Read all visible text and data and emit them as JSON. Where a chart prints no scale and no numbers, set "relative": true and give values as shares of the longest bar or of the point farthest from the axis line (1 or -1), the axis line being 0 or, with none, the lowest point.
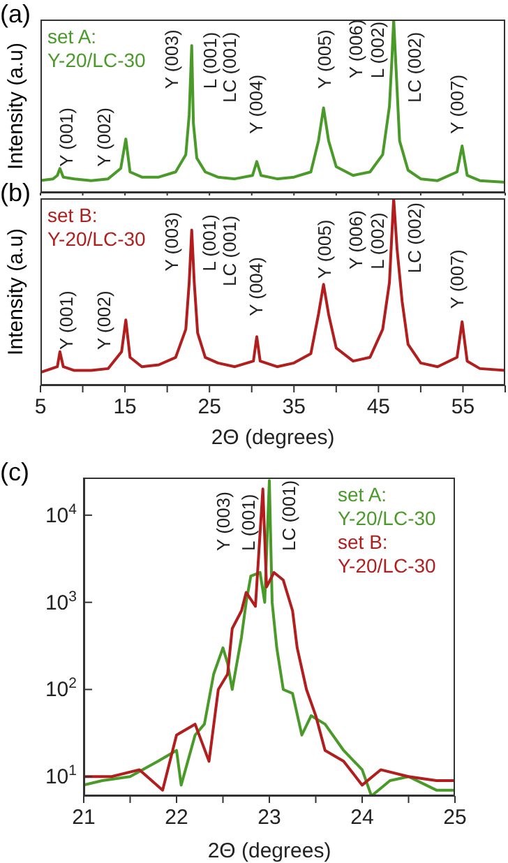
{
  "chart_data": [
    {
      "type": "line",
      "title": "(a)",
      "ylabel": "Intensity (a.u)",
      "relative": true,
      "xlim": [
        5,
        60
      ],
      "xticks": [
        5,
        {
          "value": 10,
          "label": null
        },
        15,
        {
          "value": 20,
          "label": null
        },
        25,
        {
          "value": 30,
          "label": null
        },
        35,
        {
          "value": 40,
          "label": null
        },
        45,
        {
          "value": 50,
          "label": null
        },
        55,
        {
          "value": 60,
          "label": null
        }
      ],
      "tick_labels": false,
      "legend": "top left",
      "series": [
        {
          "name": "set A: Y-20/LC-30",
          "color": "#4a9a2a",
          "x": [
            5,
            6.5,
            7.0,
            7.3,
            7.7,
            9,
            11,
            13,
            14.5,
            15.1,
            15.6,
            17,
            19,
            21,
            22.2,
            22.6,
            22.9,
            23.1,
            23.5,
            24.5,
            26,
            28,
            30.1,
            30.6,
            31.1,
            33,
            35,
            37,
            37.9,
            38.5,
            39.1,
            40,
            42,
            44,
            45.5,
            46.3,
            46.6,
            46.8,
            47.1,
            47.5,
            48.5,
            50,
            52,
            54.3,
            54.9,
            55.5,
            57,
            60
          ],
          "values": [
            0.07,
            0.08,
            0.1,
            0.14,
            0.09,
            0.08,
            0.07,
            0.08,
            0.14,
            0.31,
            0.12,
            0.09,
            0.09,
            0.12,
            0.22,
            0.45,
            0.85,
            0.4,
            0.2,
            0.12,
            0.09,
            0.08,
            0.1,
            0.18,
            0.1,
            0.08,
            0.09,
            0.12,
            0.3,
            0.49,
            0.3,
            0.15,
            0.1,
            0.12,
            0.22,
            0.5,
            0.78,
            1.0,
            0.7,
            0.3,
            0.13,
            0.08,
            0.07,
            0.12,
            0.27,
            0.1,
            0.07,
            0.06
          ]
        }
      ],
      "annotations": [
        "Y (001)",
        "Y (002)",
        "Y (003)",
        "L (001)",
        "LC (001)",
        "Y (004)",
        "Y (005)",
        "Y (006)",
        "L (002)",
        "LC (002)",
        "Y (007)"
      ]
    },
    {
      "type": "line",
      "title": "(b)",
      "xlabel": "2Θ (degrees)",
      "ylabel": "Intensity (a.u)",
      "relative": true,
      "xlim": [
        5,
        60
      ],
      "xticks": [
        5,
        {
          "value": 10,
          "label": null
        },
        15,
        {
          "value": 20,
          "label": null
        },
        25,
        {
          "value": 30,
          "label": null
        },
        35,
        {
          "value": 40,
          "label": null
        },
        45,
        {
          "value": 50,
          "label": null
        },
        55,
        {
          "value": 60,
          "label": null
        }
      ],
      "tick_labels": "x",
      "legend": "top left",
      "series": [
        {
          "name": "set B: Y-20/LC-30",
          "color": "#b21e1e",
          "x": [
            5,
            7.0,
            7.3,
            7.7,
            9,
            11,
            13,
            14.6,
            15.1,
            15.6,
            17,
            19,
            21,
            22.2,
            22.6,
            22.9,
            23.2,
            23.6,
            24.5,
            26,
            28,
            30.2,
            30.6,
            31.0,
            33,
            35,
            37,
            37.9,
            38.5,
            39.1,
            40,
            42,
            44,
            45.5,
            46.3,
            46.8,
            47.2,
            47.8,
            48.5,
            50,
            52,
            54.3,
            54.9,
            55.5,
            57,
            60
          ],
          "values": [
            0.07,
            0.1,
            0.18,
            0.1,
            0.08,
            0.08,
            0.09,
            0.18,
            0.35,
            0.15,
            0.1,
            0.11,
            0.15,
            0.3,
            0.55,
            0.83,
            0.55,
            0.28,
            0.15,
            0.12,
            0.1,
            0.13,
            0.26,
            0.13,
            0.1,
            0.12,
            0.17,
            0.38,
            0.54,
            0.38,
            0.2,
            0.13,
            0.15,
            0.3,
            0.55,
            1.0,
            0.73,
            0.45,
            0.22,
            0.12,
            0.1,
            0.15,
            0.34,
            0.13,
            0.09,
            0.08
          ]
        }
      ],
      "annotations": [
        "Y (001)",
        "Y (002)",
        "Y (003)",
        "L (001)",
        "LC (001)",
        "Y (004)",
        "Y (005)",
        "Y (006)",
        "L (002)",
        "LC (002)",
        "Y (007)"
      ]
    },
    {
      "type": "line",
      "title": "(c)",
      "xlabel": "2Θ (degrees)",
      "log": "y",
      "xlim": [
        21,
        25
      ],
      "xticks": [
        21,
        {
          "value": 21.5,
          "label": null
        },
        22,
        {
          "value": 22.5,
          "label": null
        },
        23,
        {
          "value": 23.5,
          "label": null
        },
        24,
        {
          "value": 24.5,
          "label": null
        },
        25
      ],
      "ylim": [
        6,
        27000
      ],
      "yticks": [
        {
          "value": 10,
          "label": "10$^{1}$"
        },
        {
          "value": 100,
          "label": "10$^{2}$"
        },
        {
          "value": 1000,
          "label": "10$^{3}$"
        },
        {
          "value": 10000,
          "label": "10$^{4}$"
        }
      ],
      "legend": "top right",
      "series": [
        {
          "name": "set A: Y-20/LC-30",
          "color": "#4a9a2a",
          "x": [
            21,
            21.2,
            21.5,
            21.8,
            22.0,
            22.05,
            22.2,
            22.3,
            22.4,
            22.5,
            22.55,
            22.6,
            22.7,
            22.75,
            22.8,
            22.9,
            22.95,
            23.0,
            23.03,
            23.08,
            23.15,
            23.25,
            23.35,
            23.45,
            23.6,
            23.8,
            24.0,
            24.1,
            24.3,
            24.5,
            24.8,
            25
          ],
          "values": [
            8,
            9,
            10,
            15,
            20,
            8,
            30,
            40,
            150,
            300,
            200,
            100,
            400,
            1000,
            2000,
            2200,
            1000,
            25000,
            1000,
            300,
            100,
            90,
            30,
            50,
            40,
            20,
            12,
            6,
            9,
            10,
            7,
            7
          ]
        },
        {
          "name": "set B: Y-20/LC-30",
          "color": "#b21e1e",
          "x": [
            21,
            21.3,
            21.6,
            21.85,
            22.0,
            22.2,
            22.35,
            22.45,
            22.55,
            22.6,
            22.7,
            22.75,
            22.85,
            22.93,
            22.97,
            23.05,
            23.15,
            23.25,
            23.3,
            23.4,
            23.5,
            23.6,
            23.8,
            24.0,
            24.2,
            24.5,
            24.8,
            25
          ],
          "values": [
            10,
            10,
            12,
            7,
            30,
            40,
            15,
            100,
            150,
            500,
            800,
            1300,
            900,
            20000,
            1500,
            2200,
            1800,
            800,
            300,
            100,
            50,
            20,
            15,
            8,
            12,
            10,
            9,
            9
          ]
        }
      ],
      "annotations": [
        "Y (003)",
        "L (001)",
        "LC (001)"
      ]
    }
  ]
}
